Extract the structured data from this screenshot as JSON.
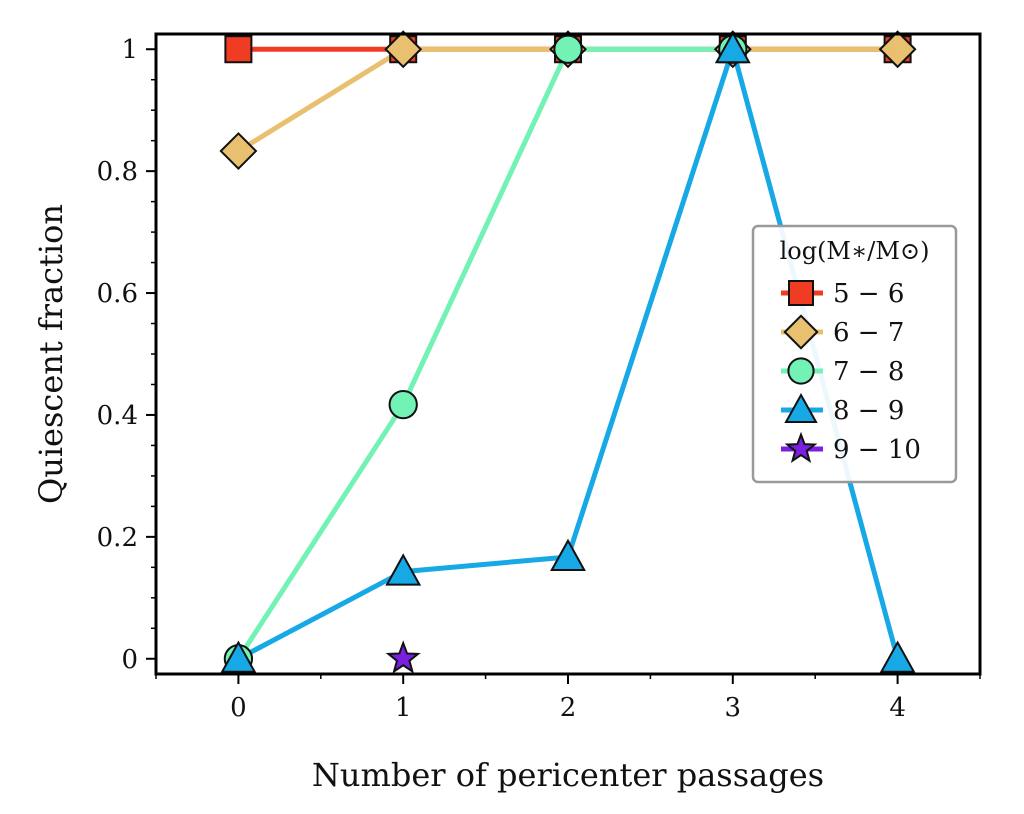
{
  "chart_data": {
    "type": "line",
    "xlabel": "Number of pericenter passages",
    "ylabel": "Quiescent fraction",
    "xlim": [
      -0.5,
      4.5
    ],
    "ylim": [
      -0.025,
      1.025
    ],
    "xticks": [
      0,
      1,
      2,
      3,
      4
    ],
    "yticks": [
      0,
      0.2,
      0.4,
      0.6,
      0.8,
      1
    ],
    "ytick_labels": [
      "0",
      "0.2",
      "0.4",
      "0.6",
      "0.8",
      "1"
    ],
    "grid": false,
    "legend": {
      "title": "log(M∗/M⊙)",
      "placement": "center-right"
    },
    "series": [
      {
        "name": "5 − 6",
        "marker": "square",
        "color": "#f03c22",
        "x": [
          0,
          1,
          2,
          3,
          4
        ],
        "y": [
          1,
          1,
          1,
          1,
          1
        ]
      },
      {
        "name": "6 − 7",
        "marker": "diamond",
        "color": "#e8c070",
        "x": [
          0,
          1,
          2,
          3,
          4
        ],
        "y": [
          0.833,
          1,
          1,
          1,
          1
        ]
      },
      {
        "name": "7 − 8",
        "marker": "circle",
        "color": "#72f2b5",
        "x": [
          0,
          1,
          2,
          3
        ],
        "y": [
          0,
          0.417,
          1,
          1
        ]
      },
      {
        "name": "8 − 9",
        "marker": "triangle",
        "color": "#17a8e6",
        "x": [
          0,
          1,
          2,
          3,
          4
        ],
        "y": [
          0,
          0.143,
          0.167,
          1,
          0
        ]
      },
      {
        "name": "9 − 10",
        "marker": "star",
        "color": "#7a1ee0",
        "x": [
          1
        ],
        "y": [
          0
        ]
      }
    ]
  }
}
